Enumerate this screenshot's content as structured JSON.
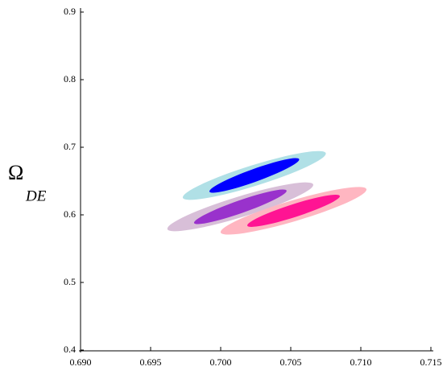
{
  "chart_data": {
    "type": "ellipse",
    "ylabel": "Ω",
    "ylabel_subscript": "DE",
    "xlim": [
      0.69,
      0.715
    ],
    "xticks": [
      {
        "value": 0.69,
        "label": "0.690"
      },
      {
        "value": 0.695,
        "label": "0.695"
      },
      {
        "value": 0.7,
        "label": "0.700"
      },
      {
        "value": 0.705,
        "label": "0.705"
      },
      {
        "value": 0.71,
        "label": "0.710"
      },
      {
        "value": 0.715,
        "label": "0.715"
      }
    ],
    "ylim": [
      0.4,
      0.9
    ],
    "yticks": [
      0.4,
      0.5,
      0.6,
      0.7,
      0.8,
      0.9
    ],
    "series": [
      {
        "color": "#b0e0e6",
        "cx": 0.7024,
        "cy": 0.6583,
        "x_half": 0.0051,
        "y_half": 0.033,
        "thickness": 0.016
      },
      {
        "color": "#0000ff",
        "cx": 0.7024,
        "cy": 0.6583,
        "x_half": 0.0032,
        "y_half": 0.024,
        "thickness": 0.01
      },
      {
        "color": "#d8bfd8",
        "cx": 0.7014,
        "cy": 0.6119,
        "x_half": 0.0052,
        "y_half": 0.033,
        "thickness": 0.016
      },
      {
        "color": "#9932cc",
        "cx": 0.7014,
        "cy": 0.6119,
        "x_half": 0.0033,
        "y_half": 0.024,
        "thickness": 0.01
      },
      {
        "color": "#ffb6c1",
        "cx": 0.7052,
        "cy": 0.606,
        "x_half": 0.0052,
        "y_half": 0.032,
        "thickness": 0.016
      },
      {
        "color": "#ff1493",
        "cx": 0.7052,
        "cy": 0.606,
        "x_half": 0.0033,
        "y_half": 0.022,
        "thickness": 0.01
      }
    ]
  }
}
